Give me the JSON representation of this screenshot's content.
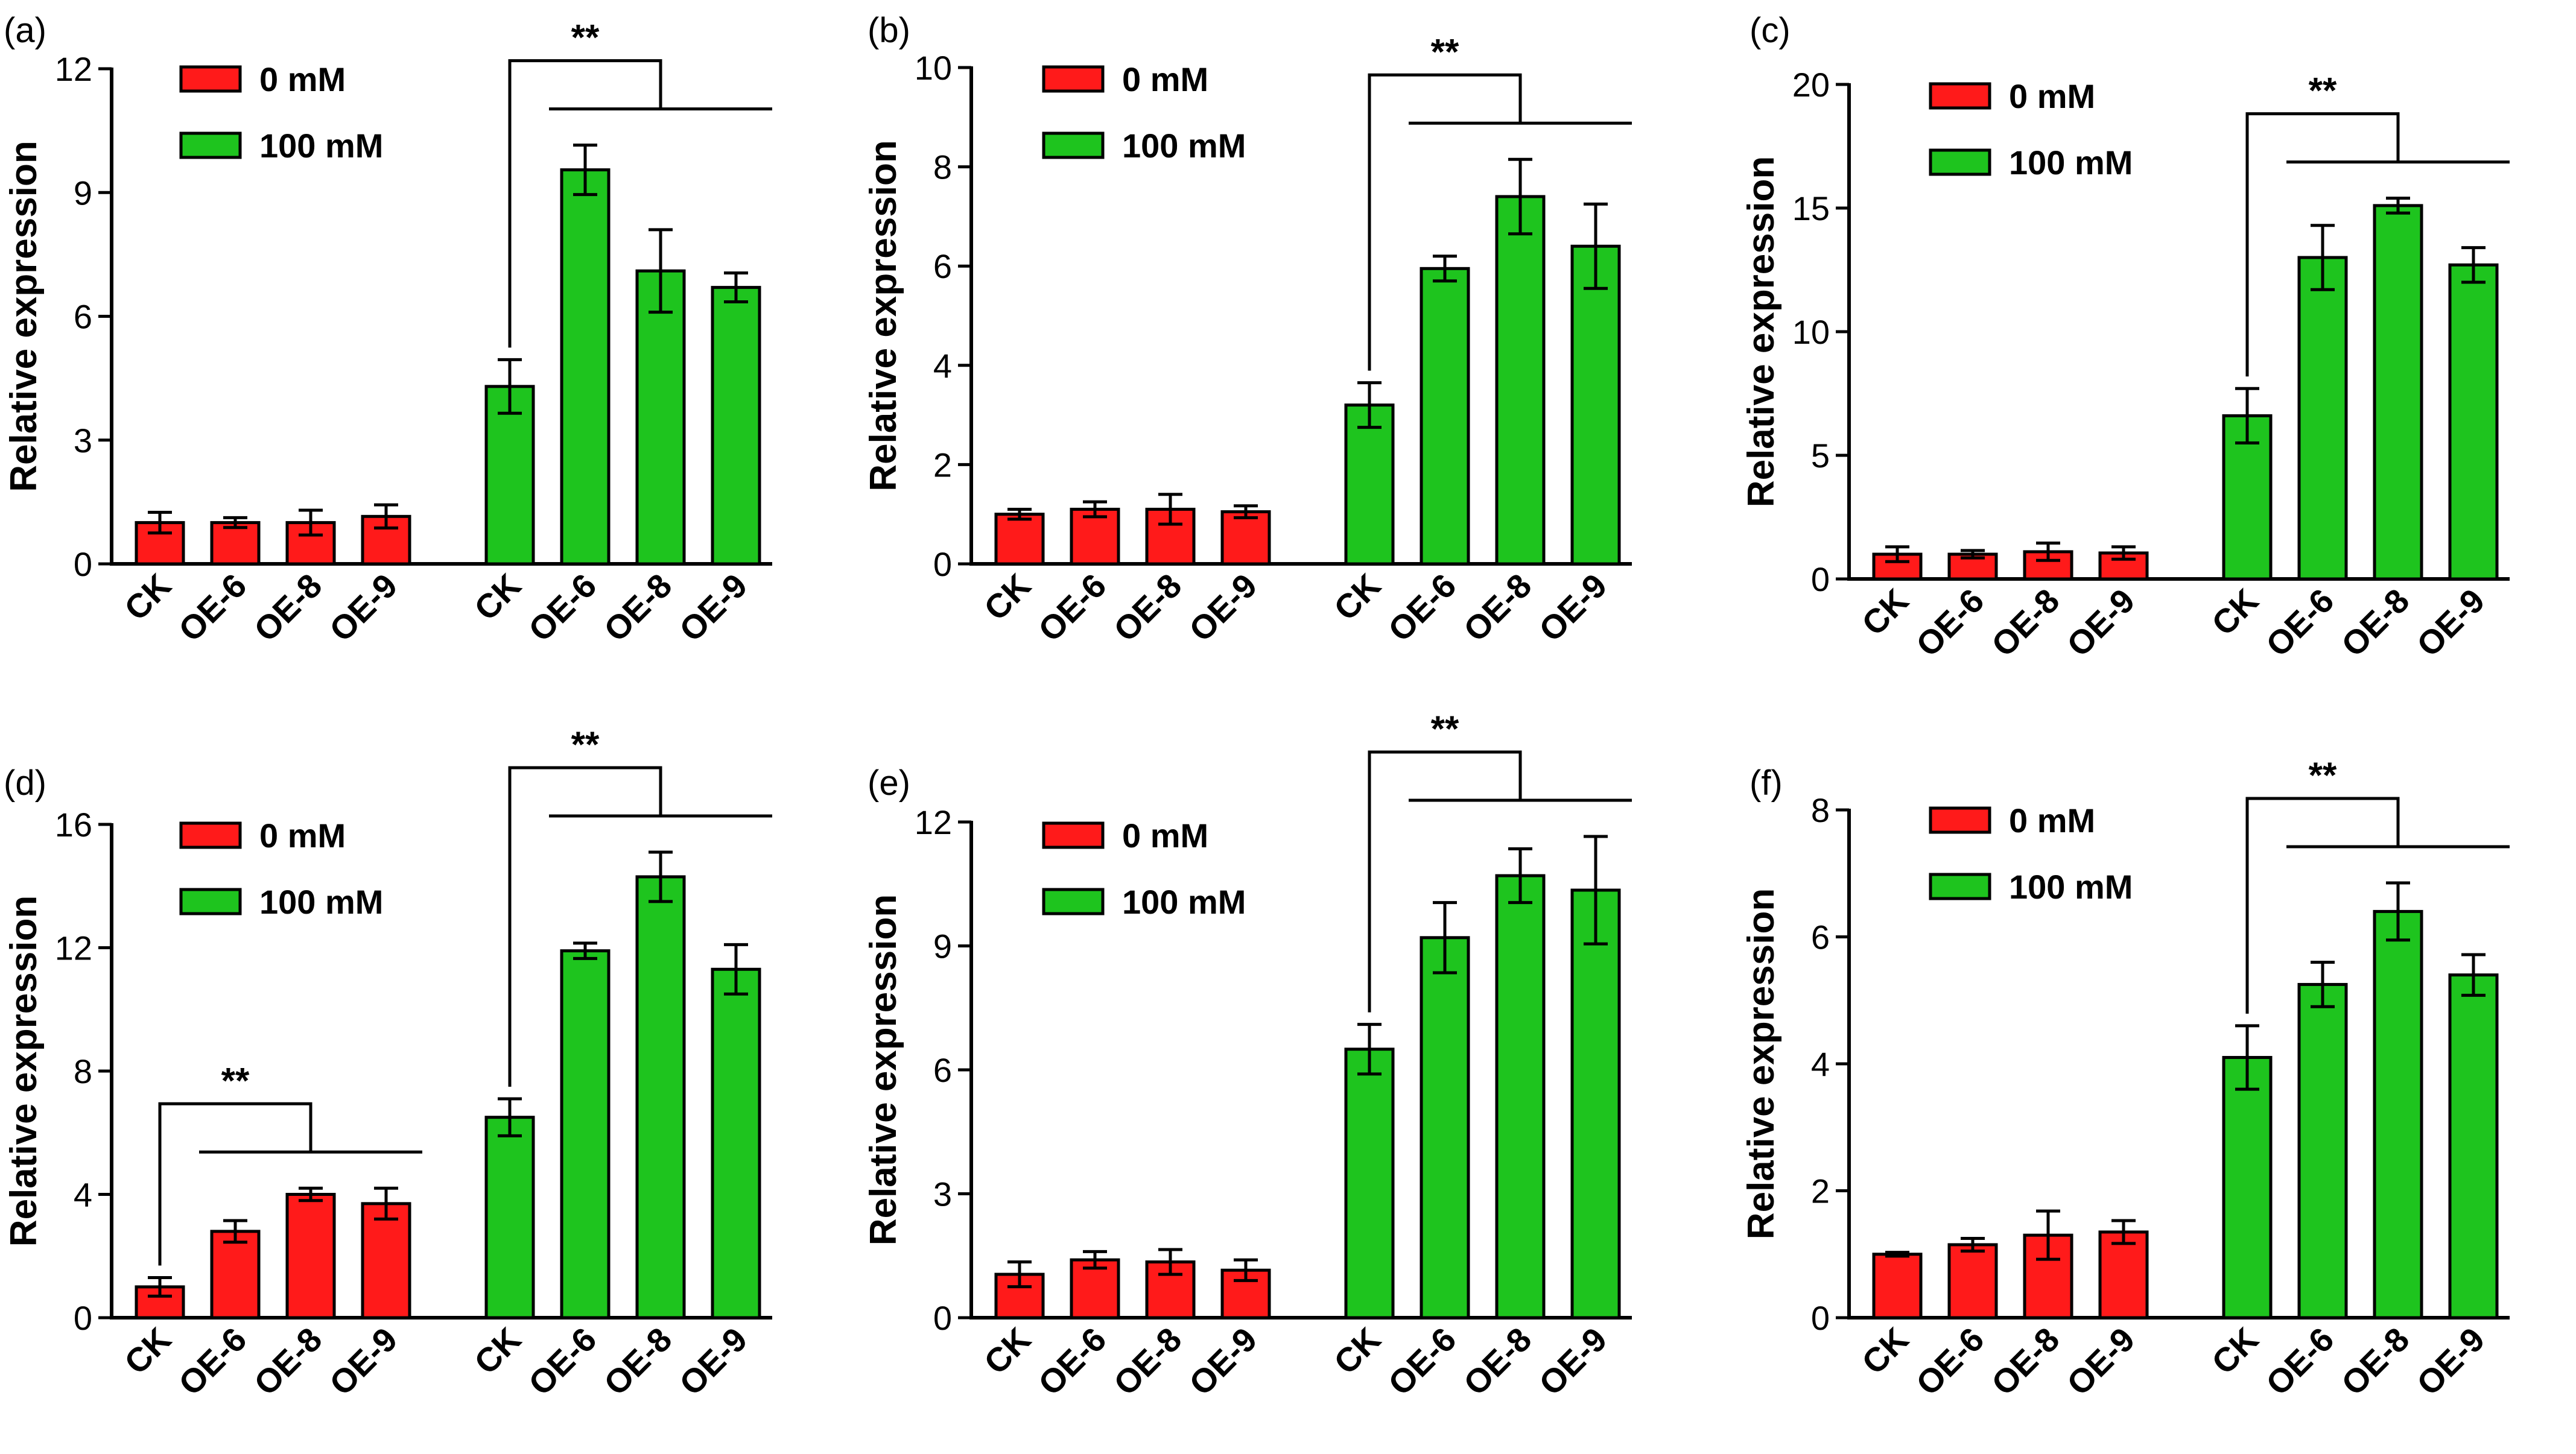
{
  "colors": {
    "group0": "#ff1a1a",
    "group1": "#1ec41e",
    "axis": "#000000"
  },
  "legend_labels": [
    "0 mM",
    "100 mM"
  ],
  "significance": "**",
  "chart_data": [
    {
      "panel": "(a)",
      "type": "bar",
      "ylabel": "Relative expression",
      "ylim": [
        0,
        12
      ],
      "yticks": [
        "0",
        "3",
        "6",
        "9",
        "12"
      ],
      "categories": [
        "CK",
        "OE-6",
        "OE-8",
        "OE-9"
      ],
      "series": [
        {
          "name": "0 mM",
          "values": [
            1.0,
            1.0,
            1.0,
            1.15
          ],
          "errors": [
            0.25,
            0.12,
            0.3,
            0.28
          ]
        },
        {
          "name": "100 mM",
          "values": [
            4.3,
            9.55,
            7.1,
            6.7
          ],
          "errors": [
            0.65,
            0.6,
            1.0,
            0.35
          ]
        }
      ],
      "annotations": [
        {
          "series": 1,
          "text": "**"
        }
      ]
    },
    {
      "panel": "(b)",
      "type": "bar",
      "ylabel": "Relative expression",
      "ylim": [
        0,
        10
      ],
      "yticks": [
        "0",
        "2",
        "4",
        "6",
        "8",
        "10"
      ],
      "categories": [
        "CK",
        "OE-6",
        "OE-8",
        "OE-9"
      ],
      "series": [
        {
          "name": "0 mM",
          "values": [
            1.0,
            1.1,
            1.1,
            1.05
          ],
          "errors": [
            0.1,
            0.15,
            0.3,
            0.12
          ]
        },
        {
          "name": "100 mM",
          "values": [
            3.2,
            5.95,
            7.4,
            6.4
          ],
          "errors": [
            0.45,
            0.25,
            0.75,
            0.85
          ]
        }
      ],
      "annotations": [
        {
          "series": 1,
          "text": "**"
        }
      ]
    },
    {
      "panel": "(c)",
      "type": "bar",
      "ylabel": "Relative expression",
      "ylim": [
        0,
        20
      ],
      "yticks": [
        "0",
        "5",
        "10",
        "15",
        "20"
      ],
      "categories": [
        "CK",
        "OE-6",
        "OE-8",
        "OE-9"
      ],
      "series": [
        {
          "name": "0 mM",
          "values": [
            1.0,
            1.0,
            1.1,
            1.05
          ],
          "errors": [
            0.3,
            0.15,
            0.35,
            0.25
          ]
        },
        {
          "name": "100 mM",
          "values": [
            6.6,
            13.0,
            15.1,
            12.7
          ],
          "errors": [
            1.1,
            1.3,
            0.3,
            0.7
          ]
        }
      ],
      "annotations": [
        {
          "series": 1,
          "text": "**"
        }
      ]
    },
    {
      "panel": "(d)",
      "type": "bar",
      "ylabel": "Relative expression",
      "ylim": [
        0,
        16
      ],
      "yticks": [
        "0",
        "4",
        "8",
        "12",
        "16"
      ],
      "categories": [
        "CK",
        "OE-6",
        "OE-8",
        "OE-9"
      ],
      "series": [
        {
          "name": "0 mM",
          "values": [
            1.0,
            2.8,
            4.0,
            3.7
          ],
          "errors": [
            0.3,
            0.35,
            0.2,
            0.5
          ]
        },
        {
          "name": "100 mM",
          "values": [
            6.5,
            11.9,
            14.3,
            11.3
          ],
          "errors": [
            0.6,
            0.25,
            0.8,
            0.8
          ]
        }
      ],
      "annotations": [
        {
          "series": 0,
          "text": "**"
        },
        {
          "series": 1,
          "text": "**"
        }
      ]
    },
    {
      "panel": "(e)",
      "type": "bar",
      "ylabel": "Relative expression",
      "ylim": [
        0,
        12
      ],
      "yticks": [
        "0",
        "3",
        "6",
        "9",
        "12"
      ],
      "categories": [
        "CK",
        "OE-6",
        "OE-8",
        "OE-9"
      ],
      "series": [
        {
          "name": "0 mM",
          "values": [
            1.05,
            1.4,
            1.35,
            1.15
          ],
          "errors": [
            0.3,
            0.2,
            0.3,
            0.25
          ]
        },
        {
          "name": "100 mM",
          "values": [
            6.5,
            9.2,
            10.7,
            10.35
          ],
          "errors": [
            0.6,
            0.85,
            0.65,
            1.3
          ]
        }
      ],
      "annotations": [
        {
          "series": 1,
          "text": "**"
        }
      ]
    },
    {
      "panel": "(f)",
      "type": "bar",
      "ylabel": "Relative expression",
      "ylim": [
        0,
        8
      ],
      "yticks": [
        "0",
        "2",
        "4",
        "6",
        "8"
      ],
      "categories": [
        "CK",
        "OE-6",
        "OE-8",
        "OE-9"
      ],
      "series": [
        {
          "name": "0 mM",
          "values": [
            1.0,
            1.15,
            1.3,
            1.35
          ],
          "errors": [
            0.03,
            0.1,
            0.38,
            0.18
          ]
        },
        {
          "name": "100 mM",
          "values": [
            4.1,
            5.25,
            6.4,
            5.4
          ],
          "errors": [
            0.5,
            0.35,
            0.45,
            0.32
          ]
        }
      ],
      "annotations": [
        {
          "series": 1,
          "text": "**"
        }
      ]
    }
  ]
}
